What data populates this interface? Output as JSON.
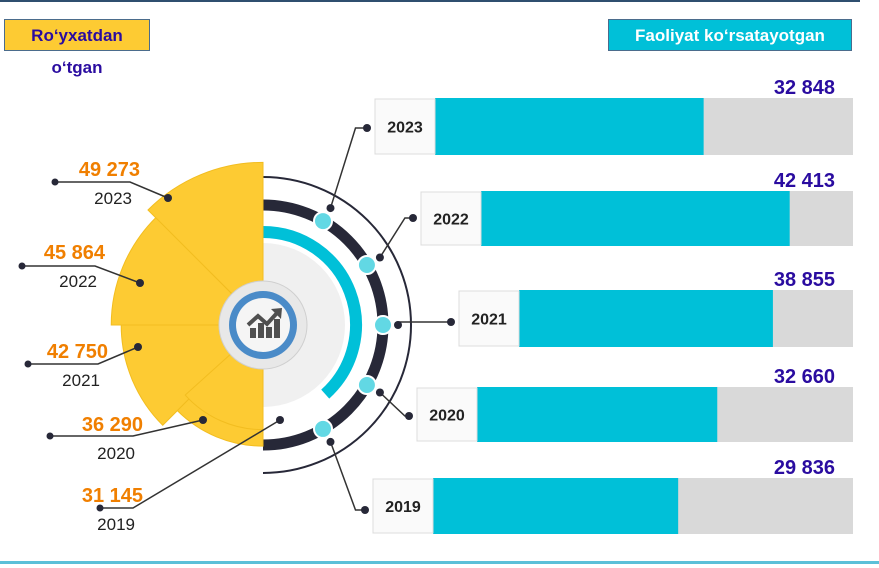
{
  "headers": {
    "registered": "Ro‘yxatdan o‘tgan",
    "active": "Faoliyat ko‘rsatayotgan"
  },
  "colors": {
    "registered": "#fdcb33",
    "active": "#00c0d8",
    "track": "#d9d9d9",
    "dark": "#272838",
    "orange": "#f07f00",
    "blue": "#2a0ca0"
  },
  "icon": "chart-growth-icon",
  "chart_data": {
    "type": "bar",
    "categories": [
      "2023",
      "2022",
      "2021",
      "2020",
      "2019"
    ],
    "series": [
      {
        "name": "Ro‘yxatdan o‘tgan",
        "values": [
          49273,
          45864,
          42750,
          36290,
          31145
        ],
        "labels": [
          "49 273",
          "45 864",
          "42 750",
          "36 290",
          "31 145"
        ]
      },
      {
        "name": "Faoliyat ko‘rsatayotgan",
        "values": [
          32848,
          42413,
          38855,
          32660,
          29836
        ],
        "labels": [
          "32 848",
          "42 413",
          "38 855",
          "32 660",
          "29 836"
        ]
      }
    ],
    "bar_max": 60000
  }
}
